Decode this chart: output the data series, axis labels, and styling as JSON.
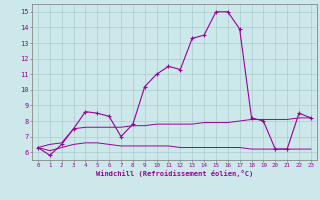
{
  "x": [
    0,
    1,
    2,
    3,
    4,
    5,
    6,
    7,
    8,
    9,
    10,
    11,
    12,
    13,
    14,
    15,
    16,
    17,
    18,
    19,
    20,
    21,
    22,
    23
  ],
  "main_data": [
    6.3,
    5.8,
    6.5,
    7.5,
    8.6,
    8.5,
    8.3,
    7.0,
    7.8,
    10.2,
    11.0,
    11.5,
    11.3,
    13.3,
    13.5,
    15.0,
    15.0,
    13.9,
    8.2,
    8.0,
    6.2,
    6.2,
    8.5,
    8.2
  ],
  "flat_bottom": [
    6.3,
    6.1,
    6.3,
    6.5,
    6.6,
    6.6,
    6.5,
    6.4,
    6.4,
    6.4,
    6.4,
    6.4,
    6.3,
    6.3,
    6.3,
    6.3,
    6.3,
    6.3,
    6.2,
    6.2,
    6.2,
    6.2,
    6.2,
    6.2
  ],
  "flat_mid": [
    6.3,
    6.5,
    6.6,
    7.5,
    7.6,
    7.6,
    7.6,
    7.6,
    7.7,
    7.7,
    7.8,
    7.8,
    7.8,
    7.8,
    7.9,
    7.9,
    7.9,
    8.0,
    8.1,
    8.1,
    8.1,
    8.1,
    8.2,
    8.2
  ],
  "color": "#990099",
  "bg_color": "#cce8ea",
  "grid_color": "#aacccc",
  "yticks": [
    6,
    7,
    8,
    9,
    10,
    11,
    12,
    13,
    14,
    15
  ],
  "xlabel": "Windchill (Refroidissement éolien,°C)",
  "ylim": [
    5.5,
    15.5
  ],
  "xlim": [
    -0.5,
    23.5
  ]
}
